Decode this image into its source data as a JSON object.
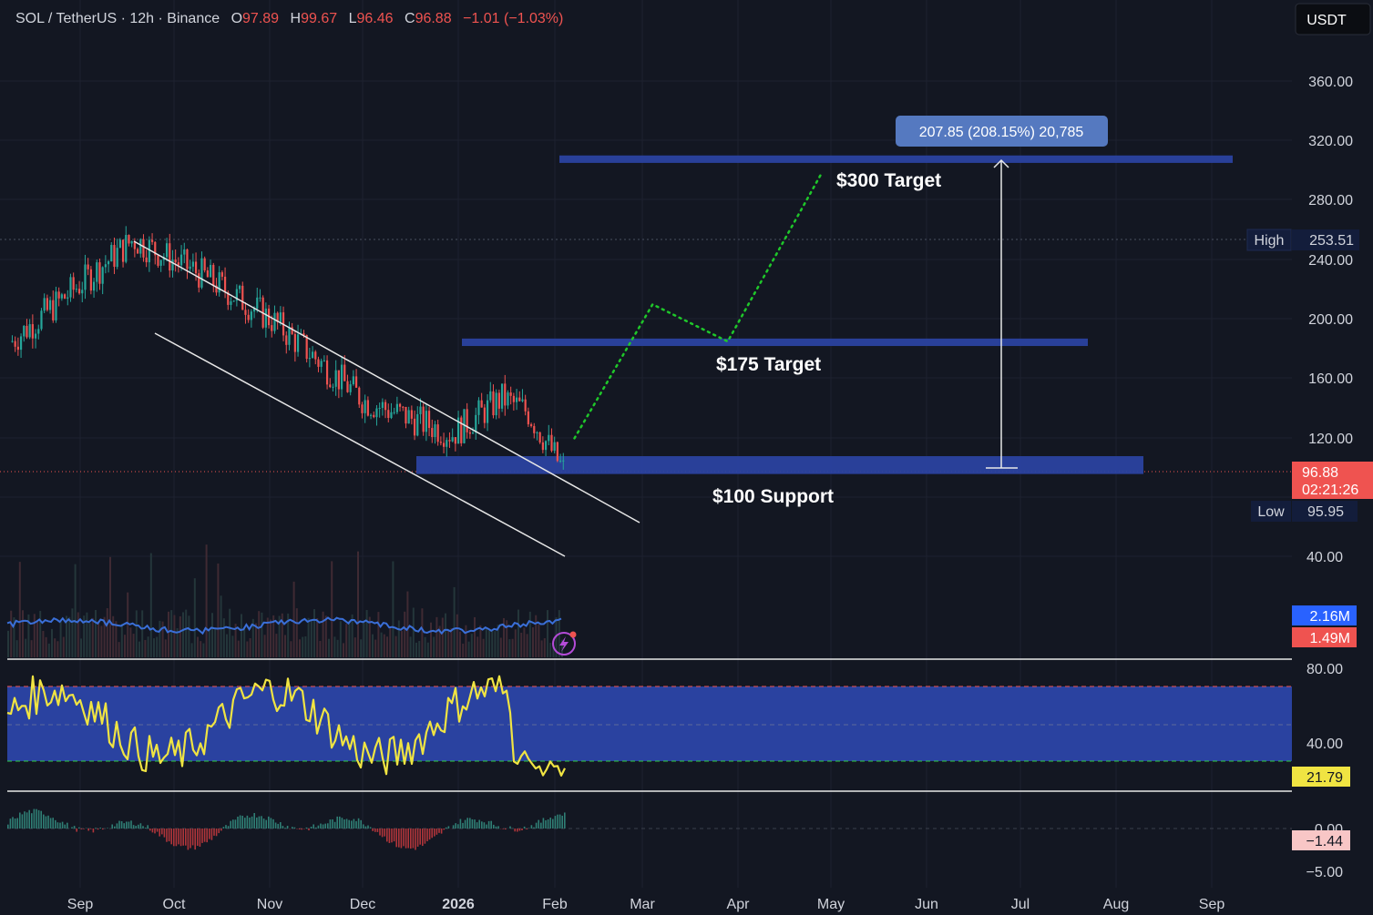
{
  "header": {
    "symbol": "SOL / TetherUS · 12h · Binance",
    "o_key": "O",
    "o_val": "97.89",
    "h_key": "H",
    "h_val": "99.67",
    "l_key": "L",
    "l_val": "96.46",
    "c_key": "C",
    "c_val": "96.88",
    "change": "−1.01 (−1.03%)"
  },
  "currency_button": "USDT",
  "colors": {
    "bg": "#131722",
    "up": "#26a69a",
    "down": "#ef5350",
    "zone": "#2a42a0",
    "rsi": "#f0e442",
    "volume_ma": "#3a6fd8",
    "projection": "#1fc72a"
  },
  "price_axis": {
    "ticks": [
      "360.00",
      "320.00",
      "280.00",
      "240.00",
      "200.00",
      "160.00",
      "120.00",
      "40.00"
    ]
  },
  "tags": {
    "high_label": "High",
    "high_value": "253.51",
    "price": "96.88",
    "countdown": "02:21:26",
    "low_label": "Low",
    "low_value": "95.95",
    "vol_ma": "2.16M",
    "vol": "1.49M",
    "rsi_value": "21.79",
    "macd_value": "−1.44"
  },
  "rsi_axis": {
    "ticks": [
      "80.00",
      "40.00"
    ]
  },
  "macd_axis": {
    "ticks": [
      "0.00",
      "−5.00"
    ]
  },
  "time_axis": {
    "labels": [
      "Sep",
      "Oct",
      "Nov",
      "Dec",
      "2026",
      "Feb",
      "Mar",
      "Apr",
      "May",
      "Jun",
      "Jul",
      "Aug",
      "Sep"
    ]
  },
  "annotations": {
    "measure": "207.85 (208.15%) 20,785",
    "target_300": "$300 Target",
    "target_175": "$175 Target",
    "support_100": "$100 Support"
  },
  "chart_data": {
    "type": "line",
    "price_path": {
      "x": [
        "2025-08-10",
        "2025-09-18",
        "2025-10-10",
        "2025-11-01",
        "2025-12-01",
        "2025-12-29",
        "2026-01-14",
        "2026-01-22",
        "2026-02-03"
      ],
      "y": [
        185,
        253.5,
        230,
        200,
        145,
        123,
        147,
        138,
        96.88
      ]
    },
    "projection": {
      "x": [
        "2026-02-06",
        "2026-03-03",
        "2026-03-27",
        "2026-04-26"
      ],
      "y": [
        120,
        210,
        185,
        298
      ]
    },
    "zones": [
      {
        "label": "$300 Target",
        "from": 305,
        "to": 310
      },
      {
        "label": "$175 Target",
        "from": 182,
        "to": 187
      },
      {
        "label": "$100 Support",
        "from": 96,
        "to": 108
      }
    ],
    "high": 253.51,
    "low": 95.95,
    "last": 96.88,
    "rsi": {
      "last": 21.79,
      "upper": 70,
      "lower": 30
    },
    "macd": {
      "last": -1.44
    },
    "ylim": [
      20,
      380
    ]
  }
}
